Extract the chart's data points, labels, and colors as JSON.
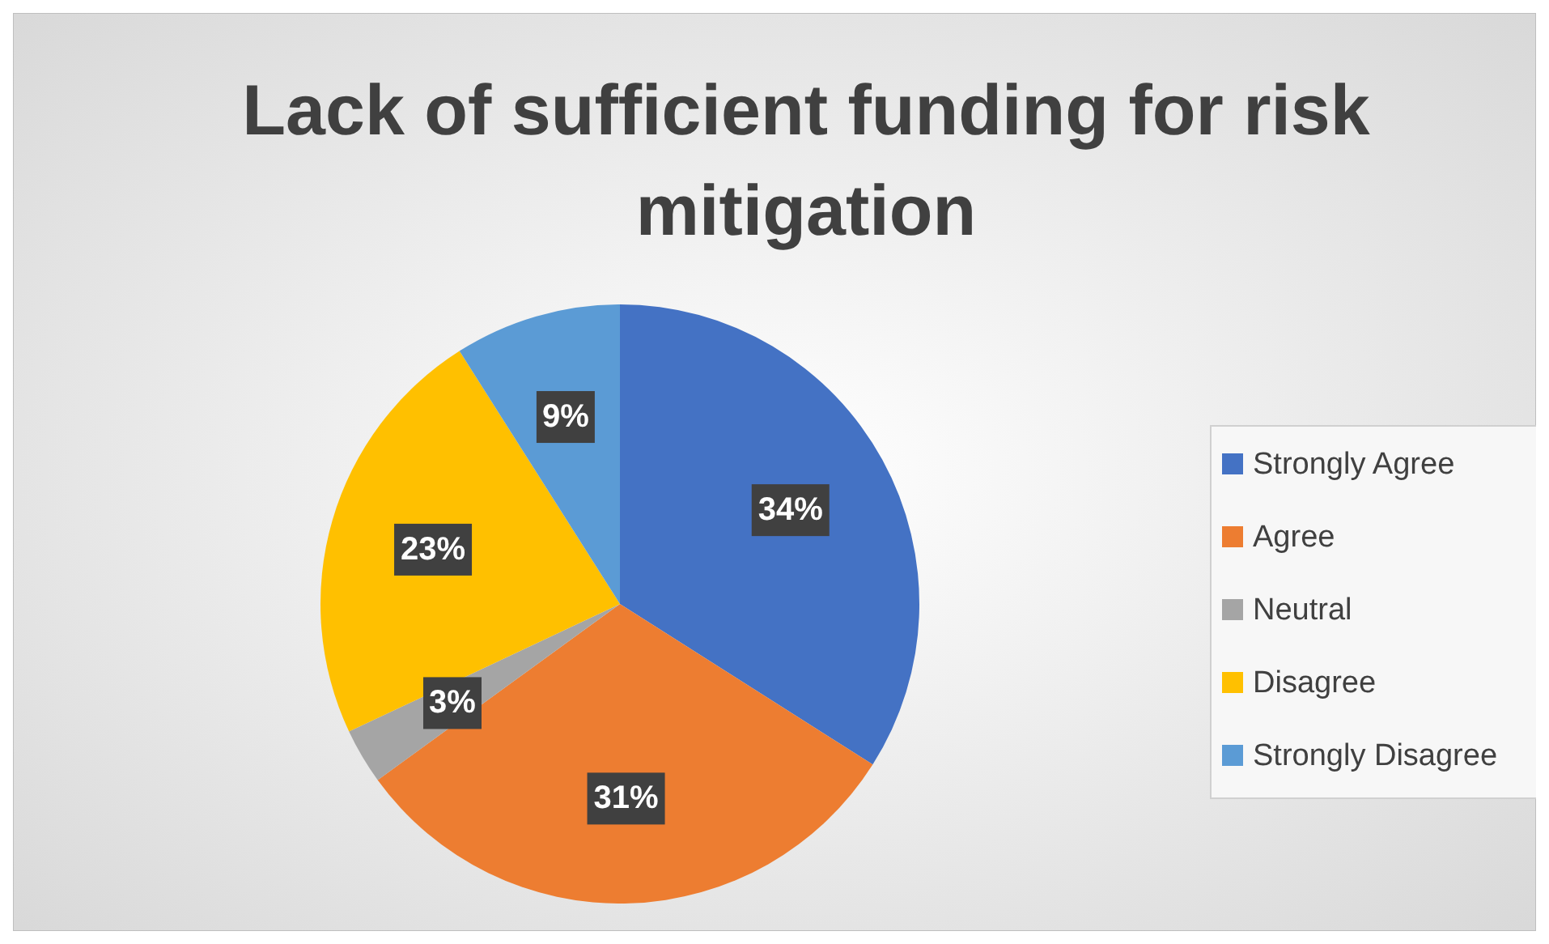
{
  "chart_data": {
    "type": "pie",
    "title": "Lack of sufficient funding for risk mitigation",
    "categories": [
      "Strongly Agree",
      "Agree",
      "Neutral",
      "Disagree",
      "Strongly Disagree"
    ],
    "values": [
      34,
      31,
      3,
      23,
      9
    ],
    "colors": [
      "#4472c4",
      "#ed7d31",
      "#a5a5a5",
      "#ffc000",
      "#5b9bd5"
    ],
    "value_labels": [
      "34%",
      "31%",
      "3%",
      "23%",
      "9%"
    ],
    "legend": "right"
  }
}
